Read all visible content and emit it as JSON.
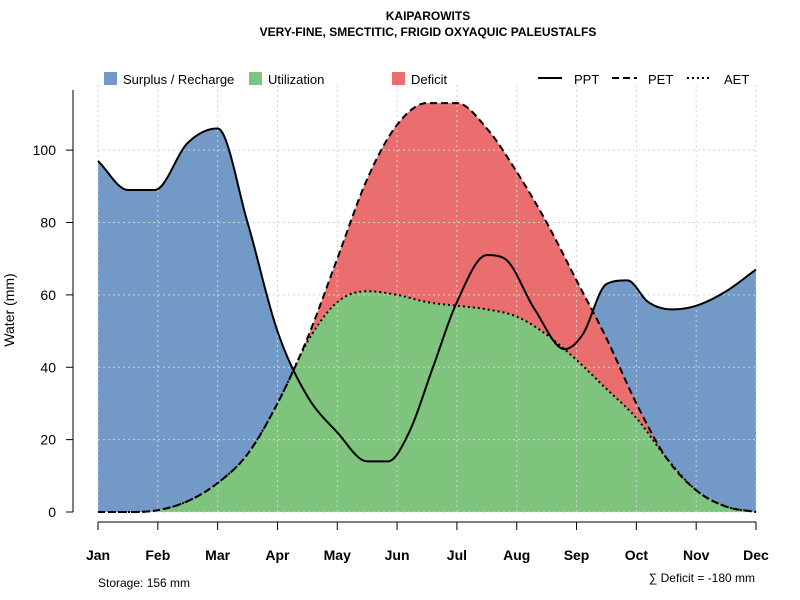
{
  "chart_data": {
    "type": "area",
    "title": "KAIPAROWITS",
    "subtitle": "VERY-FINE, SMECTITIC, FRIGID OXYAQUIC PALEUSTALFS",
    "ylabel": "Water (mm)",
    "xlabel": "",
    "ylim": [
      0,
      118
    ],
    "yticks": [
      "0",
      "20",
      "40",
      "60",
      "80",
      "100"
    ],
    "categories": [
      "Jan",
      "Feb",
      "Mar",
      "Apr",
      "May",
      "Jun",
      "Jul",
      "Aug",
      "Sep",
      "Oct",
      "Nov",
      "Dec"
    ],
    "grid": true,
    "series": [
      {
        "name": "PPT",
        "style": "solid",
        "x": [
          1,
          1.5,
          1.95,
          2.5,
          3.0,
          3.5,
          4.0,
          4.5,
          5.0,
          5.5,
          5.85,
          6.2,
          6.6,
          7.0,
          7.5,
          7.8,
          8.3,
          8.8,
          9.1,
          9.5,
          9.85,
          10.2,
          10.6,
          11.0,
          11.5,
          12.0
        ],
        "values": [
          97,
          89,
          89,
          102,
          106,
          80,
          50,
          32,
          22,
          14,
          14,
          22,
          40,
          58,
          71,
          70,
          56,
          45,
          49,
          63,
          64,
          58,
          56,
          57,
          61,
          67
        ]
      },
      {
        "name": "PET",
        "style": "dashed",
        "x": [
          1,
          1.5,
          2.0,
          2.5,
          3.0,
          3.5,
          4.0,
          4.5,
          5.0,
          5.5,
          6.0,
          6.5,
          7.0,
          7.5,
          8.0,
          8.5,
          9.0,
          9.5,
          10.0,
          10.5,
          11.0,
          11.5,
          12.0
        ],
        "values": [
          0,
          0,
          0.5,
          3,
          8,
          16,
          30,
          48,
          70,
          92,
          107,
          113,
          113,
          106,
          94,
          80,
          64,
          48,
          30,
          15,
          6,
          1.5,
          0
        ]
      },
      {
        "name": "AET",
        "style": "dotted",
        "x": [
          1,
          1.5,
          2.0,
          2.5,
          3.0,
          3.5,
          4.0,
          4.5,
          5.0,
          5.5,
          6.0,
          6.5,
          7.0,
          7.5,
          8.0,
          8.5,
          9.0,
          9.5,
          10.0,
          10.5,
          11.0,
          11.5,
          12.0
        ],
        "values": [
          0,
          0,
          0.5,
          3,
          8,
          16,
          30,
          47,
          58,
          61,
          60,
          58,
          57,
          56,
          54,
          49,
          42,
          34,
          26,
          15,
          6,
          1.5,
          0
        ]
      }
    ],
    "legend": [
      "Surplus / Recharge",
      "Utilization",
      "Deficit",
      "PPT",
      "PET",
      "AET"
    ],
    "legend_position": "top",
    "annotations": [
      "Storage: 156 mm",
      "∑ Deficit = -180 mm"
    ],
    "colors": {
      "surplus": "#7399c6",
      "utilization": "#7fc47c",
      "deficit": "#eb6e6e",
      "line": "#000000"
    }
  }
}
